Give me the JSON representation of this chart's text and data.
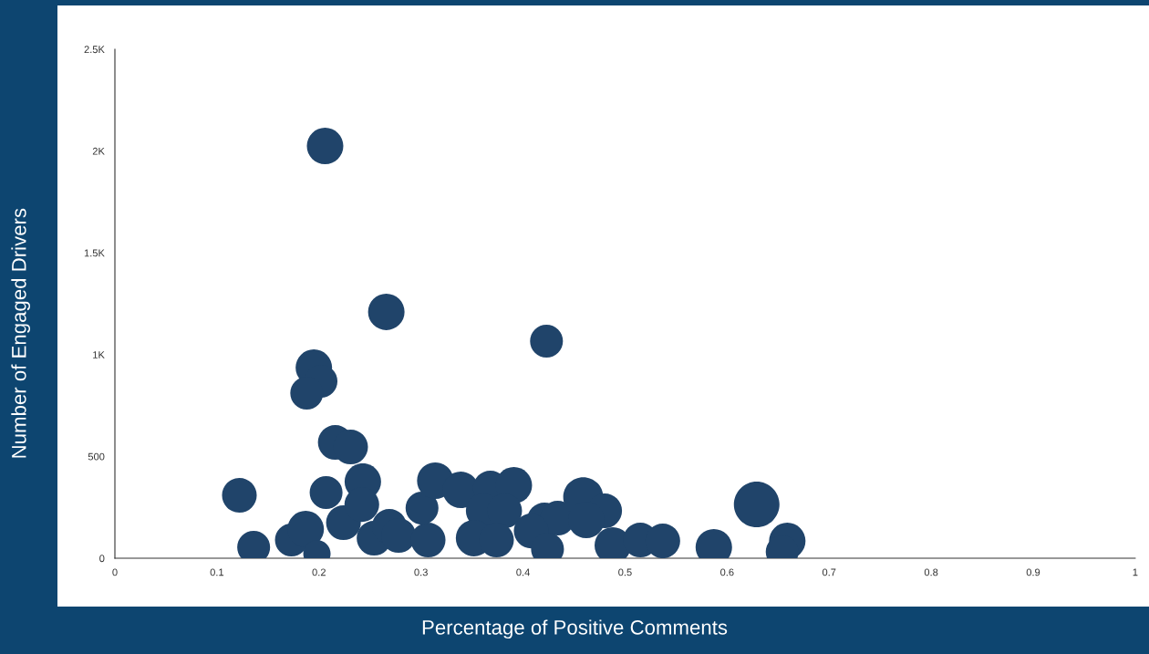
{
  "chart_data": {
    "type": "bubble",
    "xlabel": "Percentage of Positive Comments",
    "ylabel": "Number of Engaged Drivers",
    "xlim": [
      0,
      1
    ],
    "xticks": [
      0,
      0.1,
      0.2,
      0.3,
      0.4,
      0.5,
      0.6,
      0.7,
      0.8,
      0.9,
      1
    ],
    "ylim": [
      0,
      2500
    ],
    "yticks": [
      {
        "value": 0,
        "label": "0"
      },
      {
        "value": 500,
        "label": "500"
      },
      {
        "value": 1000,
        "label": "1K"
      },
      {
        "value": 1500,
        "label": "1.5K"
      },
      {
        "value": 2000,
        "label": "2K"
      },
      {
        "value": 2500,
        "label": "2.5K"
      }
    ],
    "grid": false,
    "legend": false,
    "series": [
      {
        "color": "#20446a",
        "x": [
          0.206,
          0.266,
          0.423,
          0.195,
          0.202,
          0.188,
          0.216,
          0.231,
          0.122,
          0.136,
          0.207,
          0.243,
          0.173,
          0.187,
          0.198,
          0.224,
          0.242,
          0.254,
          0.269,
          0.278,
          0.307,
          0.301,
          0.314,
          0.339,
          0.368,
          0.391,
          0.361,
          0.382,
          0.352,
          0.374,
          0.421,
          0.434,
          0.408,
          0.424,
          0.459,
          0.48,
          0.462,
          0.488,
          0.515,
          0.537,
          0.587,
          0.629,
          0.659,
          0.654
        ],
        "values": [
          2025,
          1210,
          1066,
          936,
          869,
          811,
          569,
          547,
          309,
          54,
          323,
          376,
          90,
          143,
          22,
          175,
          264,
          99,
          157,
          112,
          90,
          246,
          381,
          336,
          345,
          358,
          233,
          233,
          99,
          90,
          188,
          197,
          134,
          45,
          300,
          233,
          188,
          63,
          90,
          85,
          54,
          264,
          85,
          31
        ],
        "sizes": [
          0.64,
          0.64,
          0.52,
          0.64,
          0.52,
          0.52,
          0.58,
          0.58,
          0.58,
          0.52,
          0.52,
          0.64,
          0.52,
          0.64,
          0.36,
          0.58,
          0.58,
          0.58,
          0.58,
          0.58,
          0.58,
          0.52,
          0.64,
          0.64,
          0.58,
          0.64,
          0.58,
          0.58,
          0.64,
          0.58,
          0.58,
          0.58,
          0.58,
          0.52,
          0.77,
          0.58,
          0.64,
          0.64,
          0.58,
          0.58,
          0.64,
          1,
          0.64,
          0.52
        ]
      }
    ]
  }
}
